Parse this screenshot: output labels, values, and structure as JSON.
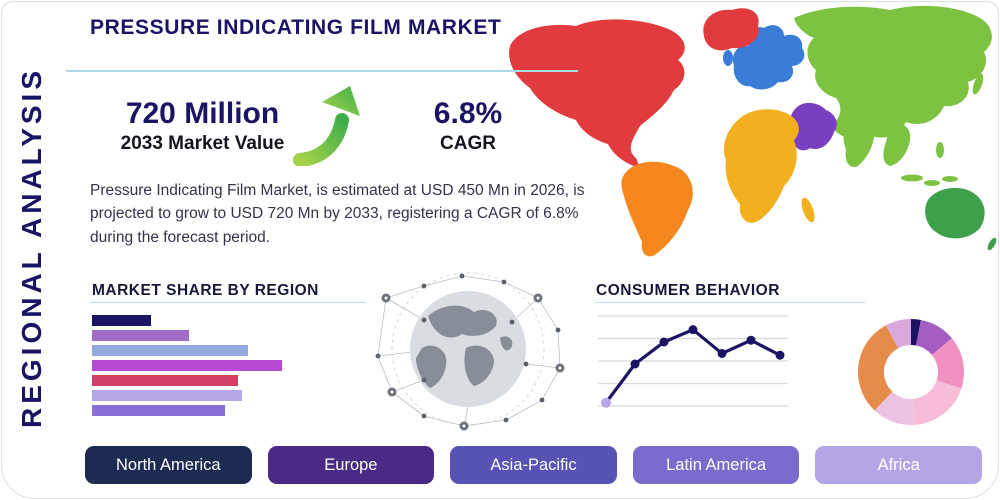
{
  "page": {
    "title": "PRESSURE INDICATING FILM MARKET",
    "side_label": "REGIONAL ANALYSIS"
  },
  "stats": {
    "market_value": "720 Million",
    "market_value_caption": "2033 Market Value",
    "cagr_value": "6.8%",
    "cagr_caption": "CAGR"
  },
  "description": "Pressure Indicating Film Market, is estimated at USD 450 Mn in 2026, is projected to grow to USD 720 Mn by 2033, registering a CAGR of 6.8% during the forecast period.",
  "section_headings": {
    "market_share": "MARKET SHARE BY REGION",
    "consumer_behavior": "CONSUMER BEHAVIOR"
  },
  "accent_colors": {
    "navy": "#1b1464",
    "rule_teal": "#aed9e6",
    "arrow_green_light": "#a6d24a",
    "arrow_green_dark": "#3fae49"
  },
  "map_colors": {
    "north_america": "#e13b3f",
    "greenland": "#e13b3f",
    "south_america": "#f6871f",
    "europe": "#3a7dd8",
    "africa": "#f2b01e",
    "middle_east": "#7a3fc1",
    "asia": "#7ec242",
    "australia": "#3fa04c"
  },
  "region_buttons": [
    {
      "label": "North America",
      "color": "#1d2b53"
    },
    {
      "label": "Europe",
      "color": "#4b2a86"
    },
    {
      "label": "Asia-Pacific",
      "color": "#5753b4"
    },
    {
      "label": "Latin America",
      "color": "#7c6bce"
    },
    {
      "label": "Africa",
      "color": "#b3a5e6"
    }
  ],
  "chart_data": [
    {
      "type": "bar",
      "title": "MARKET SHARE BY REGION",
      "orientation": "horizontal",
      "values": [
        31,
        51,
        82,
        100,
        77,
        79,
        70
      ],
      "ylim": [
        0,
        100
      ],
      "colors": [
        "#1b1464",
        "#a06cc8",
        "#93a9e0",
        "#b44bd2",
        "#d04067",
        "#b5a6e8",
        "#8a70d6"
      ]
    },
    {
      "type": "line",
      "title": "CONSUMER BEHAVIOR",
      "x": [
        1,
        2,
        3,
        4,
        5,
        6,
        7
      ],
      "values": [
        6,
        50,
        75,
        89,
        62,
        77,
        60
      ],
      "ylim": [
        0,
        100
      ],
      "grid": "horizontal",
      "line_color": "#1b1464",
      "first_marker_color": "#b9a6e8"
    },
    {
      "type": "pie",
      "subtype": "donut",
      "slices": [
        {
          "label": "navy",
          "value": 3,
          "color": "#1b1464"
        },
        {
          "label": "plum",
          "value": 11,
          "color": "#a35cc0"
        },
        {
          "label": "pink",
          "value": 16,
          "color": "#f191c1"
        },
        {
          "label": "light-pink",
          "value": 19,
          "color": "#f6bcd8"
        },
        {
          "label": "pale-pink",
          "value": 13,
          "color": "#ecc3e2"
        },
        {
          "label": "orange",
          "value": 30,
          "color": "#e68c4a"
        },
        {
          "label": "lilac",
          "value": 8,
          "color": "#d9a8dc"
        }
      ]
    }
  ]
}
